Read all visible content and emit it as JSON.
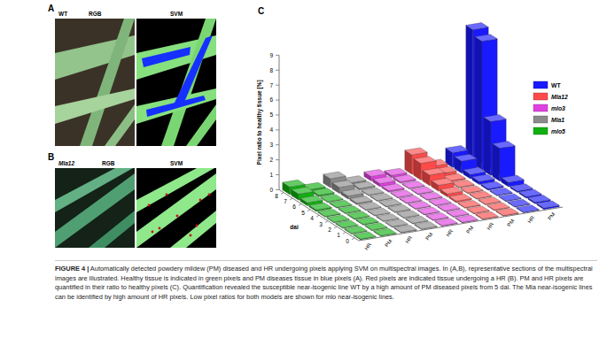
{
  "panels": {
    "a": {
      "label": "A",
      "sample": "WT",
      "images": [
        "RGB",
        "SVM"
      ]
    },
    "b": {
      "label": "B",
      "sample": "Mla12",
      "images": [
        "RGB",
        "SVM"
      ]
    },
    "c": {
      "label": "C"
    }
  },
  "chart_data": {
    "type": "bar3d",
    "y_label": "Pixel ratio to healthy tissue [%]",
    "x_label": "dai",
    "categories": [
      "HR",
      "PM",
      "HR",
      "PM",
      "HR",
      "PM",
      "HR",
      "PM",
      "HR",
      "PM"
    ],
    "dai": [
      0,
      1,
      2,
      3,
      4,
      5,
      6,
      7,
      8
    ],
    "series": [
      {
        "name": "WT",
        "color": "#1a1aff",
        "hr": [
          0.05,
          0.05,
          0.05,
          0.05,
          0.1,
          0.2,
          0.3,
          0.8,
          1.0
        ],
        "pm": [
          0.1,
          0.1,
          0.1,
          0.1,
          0.3,
          2.2,
          3.6,
          8.6,
          9.0
        ]
      },
      {
        "name": "Mla12",
        "color": "#ff4a4a",
        "hr": [
          0.05,
          0.05,
          0.05,
          0.1,
          0.2,
          0.4,
          0.7,
          1.1,
          1.3
        ],
        "pm": [
          0.05,
          0.05,
          0.05,
          0.05,
          0.05,
          0.05,
          0.1,
          0.2,
          0.3
        ]
      },
      {
        "name": "mlo3",
        "color": "#e040e0",
        "hr": [
          0.05,
          0.05,
          0.05,
          0.05,
          0.05,
          0.05,
          0.1,
          0.2,
          0.3
        ],
        "pm": [
          0.05,
          0.05,
          0.05,
          0.05,
          0.05,
          0.05,
          0.05,
          0.1,
          0.15
        ]
      },
      {
        "name": "Mla1",
        "color": "#8a8a8a",
        "hr": [
          0.05,
          0.05,
          0.05,
          0.05,
          0.05,
          0.1,
          0.2,
          0.4,
          0.6
        ],
        "pm": [
          0.05,
          0.05,
          0.05,
          0.05,
          0.05,
          0.05,
          0.05,
          0.1,
          0.1
        ]
      },
      {
        "name": "mlo5",
        "color": "#10b010",
        "hr": [
          0.05,
          0.05,
          0.05,
          0.05,
          0.05,
          0.1,
          0.2,
          0.4,
          0.5
        ],
        "pm": [
          0.05,
          0.05,
          0.05,
          0.05,
          0.05,
          0.05,
          0.05,
          0.1,
          0.1
        ]
      }
    ],
    "ylim": [
      0,
      9
    ],
    "yticks": [
      0,
      1,
      2,
      3,
      4,
      5,
      6,
      7,
      8,
      9
    ],
    "grid": false,
    "legend": "right"
  },
  "caption": {
    "label": "FIGURE 4 |",
    "text": "Automatically detected powdery mildew (PM) diseased and HR undergoing pixels applying SVM on multispectral images. In (A,B), representative sections of the multispectral images are illustrated. Healthy tissue is indicated in green pixels and PM diseases tissue in blue pixels (A). Red pixels are indicated tissue undergoing a HR (B). PM and HR pixels are quantified in their ratio to healthy pixels (C). Quantification revealed the susceptible near-isogenic line WT by a high amount of PM diseased pixels from 5 dai. The Mla near-isogenic lines can be identified by high amount of HR pixels. Low pixel ratios for both models are shown for mlo near-isogenic lines."
  }
}
